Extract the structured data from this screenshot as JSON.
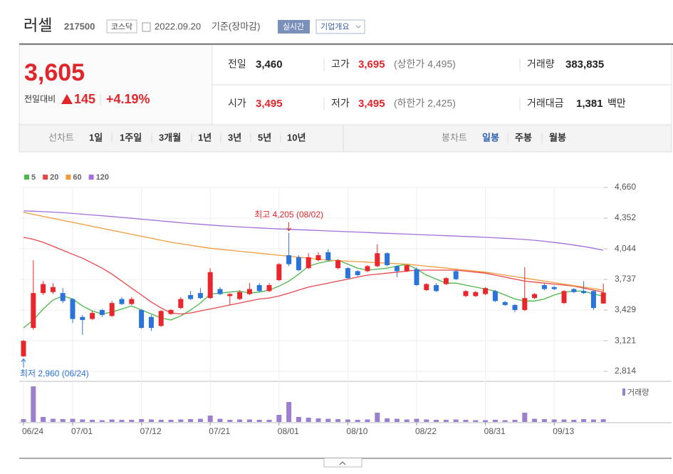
{
  "header": {
    "name": "러셀",
    "code": "217500",
    "market": "코스닥",
    "date": "2022.09.20",
    "basis": "기준(장마감)",
    "realtime": "실시간",
    "company": "기업개요"
  },
  "quote": {
    "price": "3,605",
    "change_label": "전일대비",
    "change": "145",
    "change_pct": "+4.19%",
    "fields": [
      {
        "label": "전일",
        "value": "3,460"
      },
      {
        "label": "고가",
        "value": "3,695",
        "extra": "(상한가 4,495)"
      },
      {
        "label": "거래량",
        "value": "383,835"
      },
      {
        "label": "시가",
        "value": "3,495"
      },
      {
        "label": "저가",
        "value": "3,495",
        "extra": "(하한가 2,425)"
      },
      {
        "label": "거래대금",
        "value": "1,381",
        "unit": "백만"
      }
    ]
  },
  "nav": {
    "line_label": "선차트",
    "line_periods": [
      "1일",
      "1주일",
      "3개월",
      "1년",
      "3년",
      "5년",
      "10년"
    ],
    "candle_label": "봉차트",
    "candle_periods": [
      "일봉",
      "주봉",
      "월봉"
    ]
  },
  "chart_data": {
    "type": "candlestick",
    "categories": [
      "06/24",
      null,
      null,
      null,
      null,
      "07/01",
      null,
      null,
      null,
      null,
      null,
      null,
      "07/12",
      null,
      null,
      null,
      null,
      null,
      null,
      "07/21",
      null,
      null,
      null,
      null,
      null,
      null,
      "08/01",
      null,
      null,
      null,
      null,
      null,
      null,
      "08/10",
      null,
      null,
      null,
      null,
      null,
      null,
      "08/22",
      null,
      null,
      null,
      null,
      null,
      null,
      "08/31",
      null,
      null,
      null,
      null,
      null,
      null,
      "09/13",
      null,
      null,
      null,
      null,
      null
    ],
    "open": [
      2965,
      3250,
      3600,
      3610,
      3600,
      3540,
      3360,
      3340,
      3430,
      3370,
      3540,
      3490,
      3430,
      3360,
      3270,
      3390,
      3450,
      3580,
      3600,
      3550,
      3640,
      3570,
      3540,
      3590,
      3680,
      3620,
      3730,
      3980,
      3960,
      3850,
      3930,
      4010,
      3850,
      3850,
      3820,
      3820,
      3870,
      4000,
      3870,
      3820,
      3840,
      3630,
      3680,
      3690,
      3820,
      3570,
      3570,
      3590,
      3620,
      3510,
      3480,
      3430,
      3550,
      3680,
      3660,
      3500,
      3640,
      3620,
      3620,
      3495
    ],
    "high": [
      3130,
      3930,
      3720,
      3700,
      3650,
      3550,
      3380,
      3420,
      3440,
      3520,
      3560,
      3560,
      3440,
      3380,
      3430,
      3440,
      3560,
      3620,
      3650,
      3850,
      3660,
      3600,
      3630,
      3700,
      3700,
      3700,
      3900,
      4205,
      3980,
      4000,
      4010,
      4040,
      3940,
      3860,
      3830,
      3880,
      4090,
      4010,
      3880,
      3890,
      3860,
      3700,
      3700,
      3760,
      3830,
      3630,
      3620,
      3660,
      3630,
      3520,
      3490,
      3860,
      3600,
      3700,
      3670,
      3630,
      3650,
      3720,
      3630,
      3695
    ],
    "low": [
      2960,
      3230,
      3580,
      3590,
      3500,
      3300,
      3180,
      3330,
      3360,
      3360,
      3480,
      3480,
      3240,
      3220,
      3260,
      3380,
      3440,
      3530,
      3540,
      3540,
      3580,
      3480,
      3530,
      3580,
      3610,
      3610,
      3720,
      3870,
      3820,
      3840,
      3920,
      3920,
      3840,
      3740,
      3770,
      3810,
      3860,
      3870,
      3760,
      3810,
      3670,
      3620,
      3610,
      3680,
      3730,
      3560,
      3560,
      3580,
      3510,
      3470,
      3410,
      3420,
      3540,
      3630,
      3630,
      3490,
      3600,
      3590,
      3430,
      3495
    ],
    "close": [
      3120,
      3600,
      3690,
      3660,
      3520,
      3340,
      3330,
      3400,
      3380,
      3500,
      3490,
      3540,
      3250,
      3250,
      3420,
      3430,
      3540,
      3540,
      3550,
      3810,
      3590,
      3590,
      3610,
      3640,
      3620,
      3680,
      3890,
      3890,
      3830,
      3960,
      3980,
      3930,
      3930,
      3750,
      3780,
      3870,
      4000,
      3880,
      3820,
      3880,
      3680,
      3690,
      3620,
      3750,
      3740,
      3620,
      3610,
      3650,
      3520,
      3480,
      3430,
      3550,
      3590,
      3640,
      3640,
      3620,
      3610,
      3600,
      3450,
      3605
    ],
    "up_color": "#e8262b",
    "down_color": "#2a73d8",
    "moving_averages": [
      {
        "name": "5",
        "color": "#4cb84a",
        "values": [
          3250,
          3330,
          3440,
          3530,
          3570,
          3540,
          3470,
          3420,
          3390,
          3410,
          3440,
          3470,
          3430,
          3390,
          3350,
          3330,
          3370,
          3430,
          3500,
          3590,
          3600,
          3610,
          3620,
          3600,
          3610,
          3630,
          3670,
          3720,
          3790,
          3870,
          3900,
          3920,
          3930,
          3890,
          3850,
          3830,
          3840,
          3850,
          3870,
          3890,
          3840,
          3780,
          3740,
          3700,
          3700,
          3680,
          3660,
          3640,
          3620,
          3580,
          3540,
          3520,
          3520,
          3540,
          3580,
          3610,
          3620,
          3620,
          3590,
          3570
        ]
      },
      {
        "name": "20",
        "color": "#e8474a",
        "values": [
          4160,
          4140,
          4110,
          4070,
          4030,
          3990,
          3950,
          3900,
          3850,
          3790,
          3720,
          3650,
          3580,
          3510,
          3450,
          3400,
          3390,
          3400,
          3420,
          3440,
          3460,
          3480,
          3500,
          3520,
          3540,
          3550,
          3570,
          3600,
          3630,
          3660,
          3680,
          3700,
          3720,
          3740,
          3760,
          3780,
          3790,
          3800,
          3810,
          3820,
          3830,
          3830,
          3830,
          3830,
          3830,
          3820,
          3810,
          3800,
          3780,
          3760,
          3740,
          3720,
          3710,
          3700,
          3690,
          3680,
          3670,
          3650,
          3630,
          3610
        ]
      },
      {
        "name": "60",
        "color": "#f29b3d",
        "values": [
          4410,
          4390,
          4370,
          4350,
          4330,
          4310,
          4290,
          4270,
          4250,
          4230,
          4210,
          4190,
          4170,
          4150,
          4130,
          4110,
          4095,
          4080,
          4065,
          4050,
          4040,
          4030,
          4020,
          4010,
          4000,
          3990,
          3980,
          3970,
          3960,
          3950,
          3940,
          3930,
          3925,
          3920,
          3915,
          3910,
          3905,
          3900,
          3895,
          3890,
          3880,
          3870,
          3860,
          3850,
          3840,
          3830,
          3820,
          3810,
          3795,
          3780,
          3765,
          3750,
          3735,
          3720,
          3705,
          3690,
          3675,
          3660,
          3645,
          3630
        ]
      },
      {
        "name": "120",
        "color": "#a36fdc",
        "values": [
          4425,
          4422,
          4418,
          4413,
          4407,
          4400,
          4392,
          4384,
          4376,
          4368,
          4360,
          4351,
          4342,
          4333,
          4324,
          4315,
          4306,
          4298,
          4290,
          4283,
          4276,
          4270,
          4264,
          4259,
          4254,
          4249,
          4244,
          4240,
          4236,
          4232,
          4228,
          4224,
          4220,
          4216,
          4212,
          4208,
          4204,
          4200,
          4196,
          4192,
          4188,
          4184,
          4180,
          4176,
          4172,
          4168,
          4164,
          4160,
          4155,
          4150,
          4144,
          4138,
          4130,
          4120,
          4108,
          4096,
          4082,
          4068,
          4050,
          4030
        ]
      }
    ],
    "volume": {
      "name": "거래량",
      "color": "#9b80d0",
      "values": [
        400000,
        5000000,
        700000,
        450000,
        400000,
        450000,
        350000,
        300000,
        250000,
        350000,
        300000,
        300000,
        400000,
        350000,
        300000,
        300000,
        350000,
        400000,
        450000,
        900000,
        450000,
        300000,
        350000,
        350000,
        300000,
        300000,
        1000000,
        2800000,
        700000,
        600000,
        500000,
        450000,
        400000,
        350000,
        300000,
        350000,
        1300000,
        500000,
        450000,
        350000,
        450000,
        350000,
        300000,
        300000,
        350000,
        300000,
        250000,
        250000,
        300000,
        250000,
        300000,
        1300000,
        450000,
        400000,
        350000,
        350000,
        300000,
        400000,
        350000,
        383835
      ]
    },
    "vlim": [
      0,
      5200000
    ],
    "ylim": [
      2728,
      4739
    ],
    "yticks": [
      {
        "value": 4660,
        "label": "4,660"
      },
      {
        "value": 4352,
        "label": "4,352"
      },
      {
        "value": 4044,
        "label": "4,044"
      },
      {
        "value": 3737,
        "label": "3,737"
      },
      {
        "value": 3429,
        "label": "3,429"
      },
      {
        "value": 3121,
        "label": "3,121"
      },
      {
        "value": 2814,
        "label": "2,814"
      }
    ],
    "grid": true,
    "annotations": [
      {
        "text": "최고 4,205 (08/02)",
        "color": "#e0262a"
      },
      {
        "text": "최저 2,960 (06/24)",
        "color": "#2a73d8"
      }
    ]
  }
}
